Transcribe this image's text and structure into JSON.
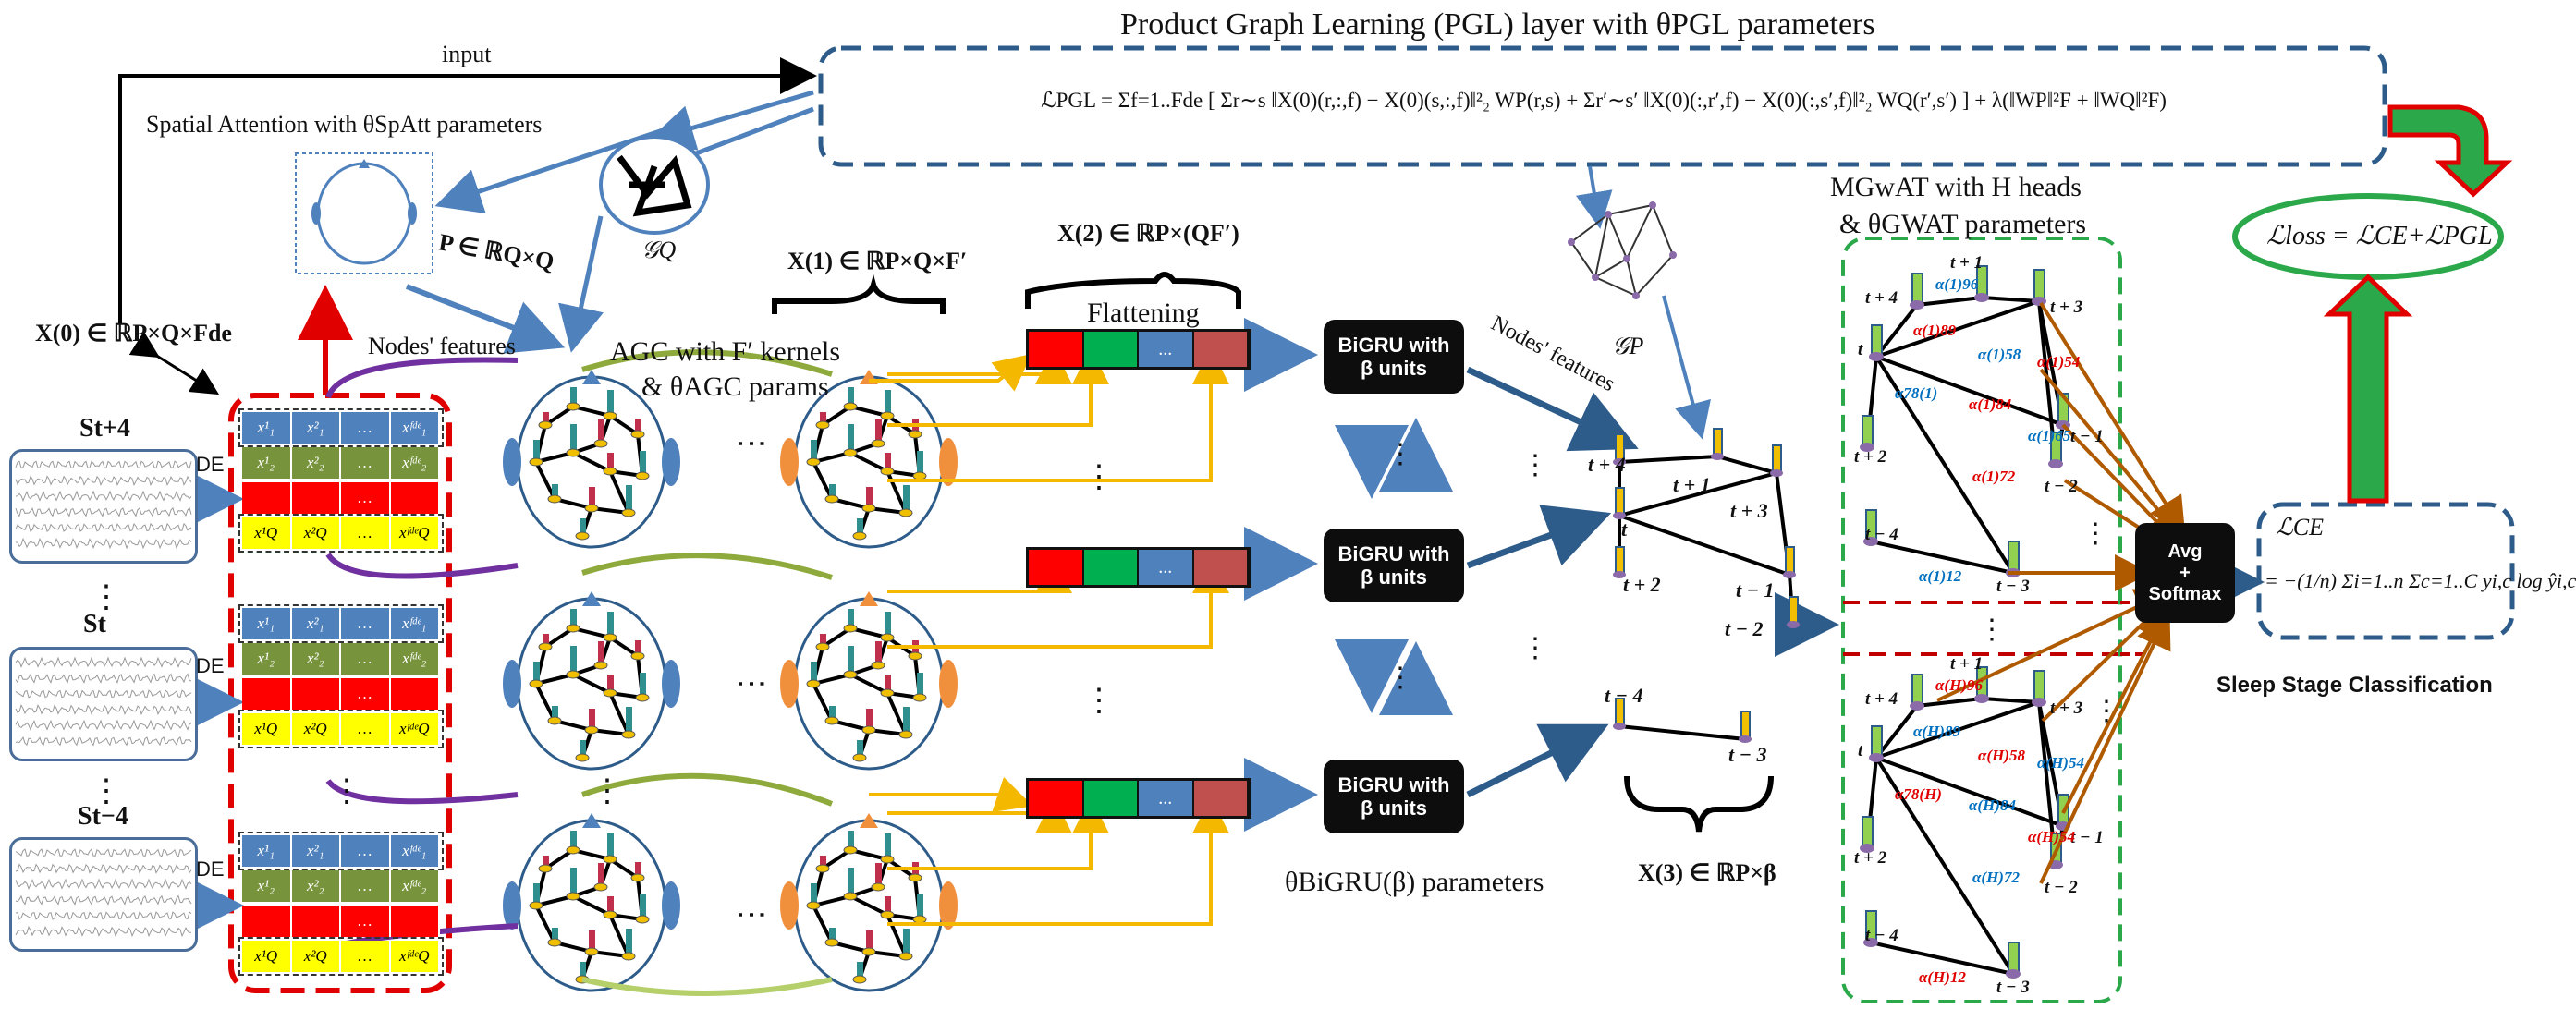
{
  "pgl": {
    "title": "Product Graph Learning (PGL) layer with θPGL parameters",
    "formula": "ℒPGL = Σf=1..Fde [ Σr∼s ‖X(0)(r,:,f) − X(0)(s,:,f)‖²₂ WP(r,s) + Σr′∼s′ ‖X(0)(:,r′,f) − X(0)(:,s′,f)‖²₂ WQ(r′,s′) ] + λ(‖WP‖²F + ‖WQ‖²F)",
    "graph_q": "𝒢Q",
    "graph_p": "𝒢P"
  },
  "labels": {
    "input": "input",
    "spatial_attention": "Spatial Attention with θSpAtt parameters",
    "p_matrix": "P ∈ ℝQ×Q",
    "x0": "X(0) ∈ ℝP×Q×Fde",
    "nodes_features_left": "Nodes' features",
    "agc_line1": "AGC with F′ kernels",
    "agc_line2": "& θAGC params",
    "x1": "X(1) ∈ ℝP×Q×F′",
    "x2": "X(2) ∈ ℝP×(QF′)",
    "flattening": "Flattening",
    "nodes_features_right": "Nodes' features",
    "bigru_params": "θBiGRU(β) parameters",
    "x3": "X(3) ∈ ℝP×β",
    "mgwat_line1": "MGwAT with H heads",
    "mgwat_line2": "& θGWAT parameters",
    "loss": "ℒloss = ℒCE+ℒPGL",
    "ce_label": "ℒCE",
    "ce_formula": "= −(1/n) Σi=1..n Σc=1..C yi,c log ŷi,c",
    "sleep_stage": "Sleep Stage Classification"
  },
  "signals": [
    {
      "label": "St+4",
      "de": "DE"
    },
    {
      "label": "St",
      "de": "DE"
    },
    {
      "label": "St−4",
      "de": "DE"
    }
  ],
  "feature_table": {
    "rows": [
      [
        "x¹₁",
        "x²₁",
        "…",
        "xᶠᵈᵉ₁"
      ],
      [
        "x¹₂",
        "x²₂",
        "…",
        "xᶠᵈᵉ₂"
      ],
      [
        "",
        "",
        "…",
        ""
      ],
      [
        "x¹Q",
        "x²Q",
        "…",
        "xᶠᵈᵉQ"
      ]
    ],
    "row_colors": [
      "#4f81bd",
      "#77933c",
      "#ff0000",
      "#ffff00"
    ]
  },
  "flatten_bar": {
    "colors": [
      "#ff0000",
      "#00b050",
      "#4f81bd",
      "#c0504d"
    ],
    "dots": "..."
  },
  "bigru": {
    "line1": "BiGRU with",
    "line2": "β units"
  },
  "avg_box": {
    "line1": "Avg",
    "line2": "+",
    "line3": "Softmax"
  },
  "time_labels": {
    "tp4": "t + 4",
    "tp1": "t + 1",
    "tp3": "t + 3",
    "t": "t",
    "tp2": "t + 2",
    "tm1": "t − 1",
    "tm2": "t − 2",
    "tm4": "t − 4",
    "tm3": "t − 3"
  },
  "alphas_top": [
    {
      "text": "α(1)96",
      "color": "#0070c0"
    },
    {
      "text": "α(1)89",
      "color": "#e00000"
    },
    {
      "text": "α(1)58",
      "color": "#0070c0"
    },
    {
      "text": "α(1)54",
      "color": "#e00000"
    },
    {
      "text": "α78(1)",
      "color": "#0070c0"
    },
    {
      "text": "α(1)84",
      "color": "#e00000"
    },
    {
      "text": "α(1)65",
      "color": "#0070c0"
    },
    {
      "text": "α(1)72",
      "color": "#e00000"
    },
    {
      "text": "α(1)12",
      "color": "#0070c0"
    }
  ],
  "alphas_bottom": [
    {
      "text": "α(H)96",
      "color": "#e00000"
    },
    {
      "text": "α(H)89",
      "color": "#0070c0"
    },
    {
      "text": "α(H)58",
      "color": "#e00000"
    },
    {
      "text": "α(H)54",
      "color": "#0070c0"
    },
    {
      "text": "α78(H)",
      "color": "#e00000"
    },
    {
      "text": "α(H)84",
      "color": "#0070c0"
    },
    {
      "text": "α(H)54",
      "color": "#e00000"
    },
    {
      "text": "α(H)72",
      "color": "#0070c0"
    },
    {
      "text": "α(H)12",
      "color": "#e00000"
    }
  ],
  "ellipsis": "⋮",
  "colors": {
    "dash_blue": "#2e5c8a",
    "dash_red": "#e00000",
    "dash_green": "#2aa84a",
    "arrow_blue": "#4f81bd",
    "arrow_yellow": "#f5b800",
    "arrow_purple": "#7030a0",
    "arrow_olive": "#8faa3c",
    "arrow_brown": "#b05a00"
  }
}
